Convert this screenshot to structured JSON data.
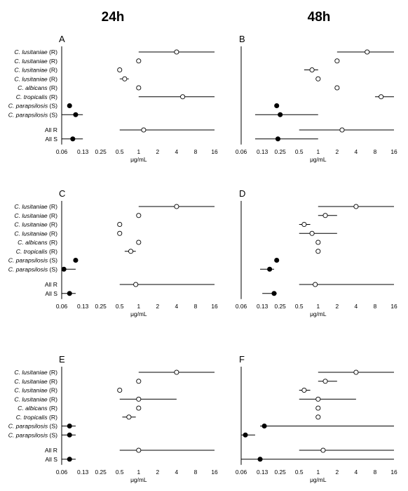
{
  "columns": {
    "left": "24h",
    "right": "48h"
  },
  "x_unit_label": "μg/mL",
  "x_ticks": [
    0.06,
    0.13,
    0.25,
    0.5,
    1,
    2,
    4,
    8,
    16
  ],
  "x_tick_labels": [
    "0.06",
    "0.13",
    "0.25",
    "0.5",
    "1",
    "2",
    "4",
    "8",
    "16"
  ],
  "row_labels": [
    {
      "species": "C. lusitaniae",
      "code": "(R)"
    },
    {
      "species": "C. lusitaniae",
      "code": "(R)"
    },
    {
      "species": "C. lusitaniae",
      "code": "(R)"
    },
    {
      "species": "C. lusitaniae",
      "code": "(R)"
    },
    {
      "species": "C. albicans",
      "code": "(R)"
    },
    {
      "species": "C. tropicalis",
      "code": "(R)"
    },
    {
      "species": "C. parapsilosis",
      "code": "(S)"
    },
    {
      "species": "C. parapsilosis",
      "code": "(S)"
    },
    {
      "species": "All R",
      "code": ""
    },
    {
      "species": "All S",
      "code": ""
    }
  ],
  "colors": {
    "ink": "#000000",
    "background": "#ffffff"
  },
  "chart_data": [
    {
      "panel": "A",
      "time": "24h",
      "type": "scatter",
      "xscale": "log2",
      "xlim": [
        0.06,
        16
      ],
      "points": [
        {
          "x": 4,
          "lo": 1,
          "hi": 16,
          "filled": false
        },
        {
          "x": 1,
          "lo": null,
          "hi": null,
          "filled": false
        },
        {
          "x": 0.5,
          "lo": null,
          "hi": null,
          "filled": false
        },
        {
          "x": 0.6,
          "lo": 0.5,
          "hi": 0.7,
          "filled": false
        },
        {
          "x": 1,
          "lo": null,
          "hi": null,
          "filled": false
        },
        {
          "x": 5,
          "lo": 1,
          "hi": 16,
          "filled": false
        },
        {
          "x": 0.08,
          "lo": null,
          "hi": null,
          "filled": true
        },
        {
          "x": 0.1,
          "lo": 0.06,
          "hi": 0.13,
          "filled": true
        },
        {
          "x": 1.2,
          "lo": 0.5,
          "hi": 16,
          "filled": false
        },
        {
          "x": 0.09,
          "lo": 0.06,
          "hi": 0.13,
          "filled": true
        }
      ]
    },
    {
      "panel": "B",
      "time": "48h",
      "type": "scatter",
      "xscale": "log2",
      "xlim": [
        0.06,
        16
      ],
      "points": [
        {
          "x": 6,
          "lo": 2,
          "hi": 16,
          "filled": false
        },
        {
          "x": 2,
          "lo": null,
          "hi": null,
          "filled": false
        },
        {
          "x": 0.8,
          "lo": 0.6,
          "hi": 1,
          "filled": false
        },
        {
          "x": 1,
          "lo": null,
          "hi": null,
          "filled": false
        },
        {
          "x": 2,
          "lo": null,
          "hi": null,
          "filled": false
        },
        {
          "x": 10,
          "lo": 8,
          "hi": 16,
          "filled": false
        },
        {
          "x": 0.22,
          "lo": null,
          "hi": null,
          "filled": true
        },
        {
          "x": 0.25,
          "lo": 0.1,
          "hi": 1,
          "filled": true
        },
        {
          "x": 2.4,
          "lo": 0.5,
          "hi": 16,
          "filled": false
        },
        {
          "x": 0.23,
          "lo": 0.1,
          "hi": 1,
          "filled": true
        }
      ]
    },
    {
      "panel": "C",
      "time": "24h",
      "type": "scatter",
      "xscale": "log2",
      "xlim": [
        0.06,
        16
      ],
      "points": [
        {
          "x": 4,
          "lo": 1,
          "hi": 16,
          "filled": false
        },
        {
          "x": 1,
          "lo": null,
          "hi": null,
          "filled": false
        },
        {
          "x": 0.5,
          "lo": null,
          "hi": null,
          "filled": false
        },
        {
          "x": 0.5,
          "lo": null,
          "hi": null,
          "filled": false
        },
        {
          "x": 1,
          "lo": null,
          "hi": null,
          "filled": false
        },
        {
          "x": 0.75,
          "lo": 0.6,
          "hi": 0.9,
          "filled": false
        },
        {
          "x": 0.1,
          "lo": null,
          "hi": null,
          "filled": true
        },
        {
          "x": 0.065,
          "lo": 0.06,
          "hi": 0.1,
          "filled": true
        },
        {
          "x": 0.9,
          "lo": 0.5,
          "hi": 16,
          "filled": false
        },
        {
          "x": 0.08,
          "lo": 0.06,
          "hi": 0.1,
          "filled": true
        }
      ]
    },
    {
      "panel": "D",
      "time": "48h",
      "type": "scatter",
      "xscale": "log2",
      "xlim": [
        0.06,
        16
      ],
      "points": [
        {
          "x": 4,
          "lo": 1,
          "hi": 16,
          "filled": false
        },
        {
          "x": 1.3,
          "lo": 1,
          "hi": 2,
          "filled": false
        },
        {
          "x": 0.6,
          "lo": 0.5,
          "hi": 0.75,
          "filled": false
        },
        {
          "x": 0.8,
          "lo": 0.5,
          "hi": 2,
          "filled": false
        },
        {
          "x": 1,
          "lo": null,
          "hi": null,
          "filled": false
        },
        {
          "x": 1,
          "lo": null,
          "hi": null,
          "filled": false
        },
        {
          "x": 0.22,
          "lo": null,
          "hi": null,
          "filled": true
        },
        {
          "x": 0.17,
          "lo": 0.12,
          "hi": 0.2,
          "filled": true
        },
        {
          "x": 0.9,
          "lo": 0.5,
          "hi": 16,
          "filled": false
        },
        {
          "x": 0.2,
          "lo": 0.13,
          "hi": 0.22,
          "filled": true
        }
      ]
    },
    {
      "panel": "E",
      "time": "24h",
      "type": "scatter",
      "xscale": "log2",
      "xlim": [
        0.06,
        16
      ],
      "points": [
        {
          "x": 4,
          "lo": 1,
          "hi": 16,
          "filled": false
        },
        {
          "x": 1,
          "lo": null,
          "hi": null,
          "filled": false
        },
        {
          "x": 0.5,
          "lo": null,
          "hi": null,
          "filled": false
        },
        {
          "x": 1,
          "lo": 0.5,
          "hi": 4,
          "filled": false
        },
        {
          "x": 1,
          "lo": null,
          "hi": null,
          "filled": false
        },
        {
          "x": 0.7,
          "lo": 0.55,
          "hi": 0.9,
          "filled": false
        },
        {
          "x": 0.08,
          "lo": 0.06,
          "hi": 0.1,
          "filled": true
        },
        {
          "x": 0.08,
          "lo": 0.06,
          "hi": 0.1,
          "filled": true
        },
        {
          "x": 1,
          "lo": 0.5,
          "hi": 16,
          "filled": false
        },
        {
          "x": 0.08,
          "lo": 0.06,
          "hi": 0.1,
          "filled": true
        }
      ]
    },
    {
      "panel": "F",
      "time": "48h",
      "type": "scatter",
      "xscale": "log2",
      "xlim": [
        0.06,
        16
      ],
      "points": [
        {
          "x": 4,
          "lo": 1,
          "hi": 16,
          "filled": false
        },
        {
          "x": 1.3,
          "lo": 1,
          "hi": 2,
          "filled": false
        },
        {
          "x": 0.6,
          "lo": 0.5,
          "hi": 0.75,
          "filled": false
        },
        {
          "x": 1,
          "lo": 0.5,
          "hi": 4,
          "filled": false
        },
        {
          "x": 1,
          "lo": null,
          "hi": null,
          "filled": false
        },
        {
          "x": 1,
          "lo": null,
          "hi": null,
          "filled": false
        },
        {
          "x": 0.14,
          "lo": 0.12,
          "hi": 16,
          "filled": true
        },
        {
          "x": 0.07,
          "lo": 0.06,
          "hi": 0.1,
          "filled": true
        },
        {
          "x": 1.2,
          "lo": 0.5,
          "hi": 16,
          "filled": false
        },
        {
          "x": 0.12,
          "lo": 0.06,
          "hi": 16,
          "filled": true
        }
      ]
    }
  ]
}
